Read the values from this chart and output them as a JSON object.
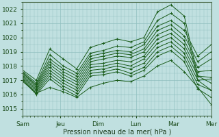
{
  "xlabel": "Pression niveau de la mer( hPa )",
  "background_color": "#c0e0e0",
  "plot_bg_color": "#c0e0e0",
  "grid_color": "#90bfbf",
  "line_color": "#1a5c1a",
  "ylim": [
    1014.5,
    1022.5
  ],
  "yticks": [
    1015,
    1016,
    1017,
    1018,
    1019,
    1020,
    1021,
    1022
  ],
  "day_labels": [
    "Sam",
    "Jeu",
    "Dim",
    "Lun",
    "Mar",
    "Mer"
  ],
  "day_positions": [
    0,
    1,
    2,
    3,
    4,
    5
  ],
  "series": [
    [
      1017.7,
      1017.0,
      1019.2,
      1018.5,
      1017.8,
      1019.3,
      1019.6,
      1019.9,
      1019.7,
      1020.0,
      1021.8,
      1022.3,
      1021.5,
      1017.3,
      1017.2
    ],
    [
      1017.6,
      1016.8,
      1018.8,
      1018.0,
      1017.5,
      1018.9,
      1019.1,
      1019.4,
      1019.3,
      1019.7,
      1021.2,
      1021.7,
      1021.0,
      1017.0,
      1017.1
    ],
    [
      1017.5,
      1016.7,
      1018.5,
      1017.8,
      1017.3,
      1018.7,
      1018.9,
      1019.1,
      1019.0,
      1019.5,
      1020.8,
      1021.2,
      1020.5,
      1018.7,
      1019.5
    ],
    [
      1017.5,
      1016.6,
      1018.3,
      1017.6,
      1017.1,
      1018.5,
      1018.7,
      1018.9,
      1018.8,
      1019.2,
      1020.5,
      1020.9,
      1020.1,
      1018.3,
      1019.0
    ],
    [
      1017.4,
      1016.5,
      1018.1,
      1017.4,
      1016.9,
      1018.3,
      1018.5,
      1018.7,
      1018.6,
      1019.0,
      1020.2,
      1020.6,
      1019.8,
      1017.9,
      1018.5
    ],
    [
      1017.3,
      1016.4,
      1017.9,
      1017.2,
      1016.7,
      1018.1,
      1018.2,
      1018.4,
      1018.3,
      1018.7,
      1019.9,
      1020.3,
      1019.5,
      1017.6,
      1017.7
    ],
    [
      1017.2,
      1016.3,
      1017.7,
      1017.0,
      1016.5,
      1017.9,
      1018.0,
      1018.2,
      1018.0,
      1018.5,
      1019.6,
      1020.0,
      1019.2,
      1017.3,
      1016.8
    ],
    [
      1017.1,
      1016.2,
      1017.5,
      1016.8,
      1016.3,
      1017.7,
      1017.8,
      1018.0,
      1017.8,
      1018.2,
      1019.3,
      1019.7,
      1018.9,
      1017.0,
      1016.3
    ],
    [
      1017.0,
      1016.1,
      1017.3,
      1016.6,
      1016.1,
      1017.5,
      1017.6,
      1017.8,
      1017.5,
      1017.9,
      1019.0,
      1019.4,
      1018.6,
      1016.7,
      1016.3
    ],
    [
      1017.0,
      1016.0,
      1017.1,
      1016.4,
      1015.9,
      1017.3,
      1017.4,
      1017.6,
      1017.3,
      1017.7,
      1018.7,
      1019.1,
      1018.3,
      1016.4,
      1015.8
    ],
    [
      1016.9,
      1016.1,
      1016.5,
      1016.2,
      1015.8,
      1016.5,
      1016.8,
      1017.0,
      1016.9,
      1017.3,
      1018.0,
      1018.4,
      1017.6,
      1016.5,
      1015.3
    ]
  ],
  "n_points": 15,
  "figsize": [
    3.2,
    2.0
  ],
  "dpi": 100
}
